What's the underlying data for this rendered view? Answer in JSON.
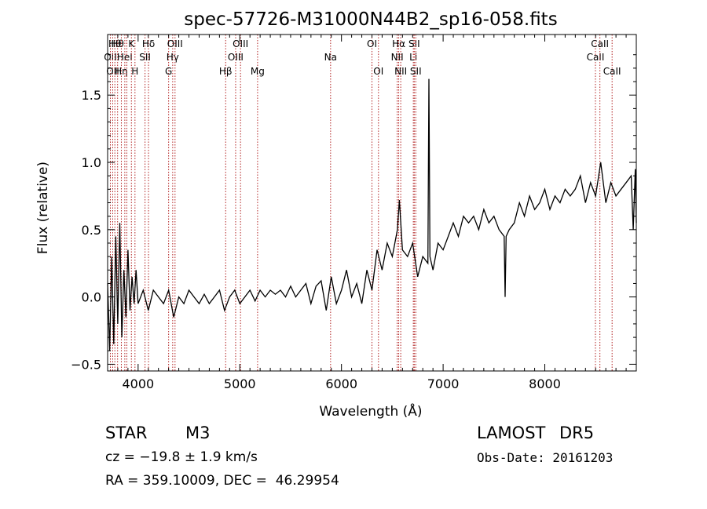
{
  "chart_data": {
    "type": "line",
    "title": "spec-57726-M31000N44B2_sp16-058.fits",
    "xlabel": "Wavelength (Å)",
    "ylabel": "Flux (relative)",
    "xlim": [
      3700,
      8900
    ],
    "ylim": [
      -0.55,
      1.95
    ],
    "x_ticks": [
      4000,
      5000,
      6000,
      7000,
      8000
    ],
    "x_tick_labels": [
      "4000",
      "5000",
      "6000",
      "7000",
      "8000"
    ],
    "y_ticks": [
      -0.5,
      0.0,
      0.5,
      1.0,
      1.5
    ],
    "y_tick_labels": [
      "−0.5",
      "0.0",
      "0.5",
      "1.0",
      "1.5"
    ],
    "grid": false,
    "line_color": "#000000",
    "marker_line_color": "#b22222",
    "series": [
      {
        "x": [
          3700,
          3720,
          3740,
          3760,
          3780,
          3800,
          3820,
          3840,
          3860,
          3880,
          3900,
          3920,
          3940,
          3960,
          3980,
          4000,
          4050,
          4100,
          4150,
          4200,
          4250,
          4300,
          4350,
          4400,
          4450,
          4500,
          4550,
          4600,
          4650,
          4700,
          4750,
          4800,
          4850,
          4900,
          4950,
          5000,
          5050,
          5100,
          5150,
          5200,
          5250,
          5300,
          5350,
          5400,
          5450,
          5500,
          5550,
          5600,
          5650,
          5700,
          5750,
          5800,
          5850,
          5900,
          5950,
          6000,
          6050,
          6100,
          6150,
          6200,
          6250,
          6300,
          6350,
          6400,
          6450,
          6500,
          6550,
          6570,
          6600,
          6650,
          6700,
          6750,
          6800,
          6850,
          6860,
          6870,
          6900,
          6950,
          7000,
          7050,
          7100,
          7150,
          7200,
          7250,
          7300,
          7350,
          7400,
          7450,
          7500,
          7550,
          7600,
          7610,
          7620,
          7650,
          7700,
          7750,
          7800,
          7850,
          7900,
          7950,
          8000,
          8050,
          8100,
          8150,
          8200,
          8250,
          8300,
          8350,
          8400,
          8450,
          8500,
          8550,
          8600,
          8650,
          8700,
          8750,
          8800,
          8850,
          8870,
          8890,
          8900
        ],
        "y": [
          0.1,
          -0.4,
          0.3,
          -0.35,
          0.45,
          -0.2,
          0.55,
          -0.3,
          0.2,
          -0.15,
          0.35,
          -0.1,
          0.15,
          -0.05,
          0.2,
          -0.05,
          0.05,
          -0.1,
          0.05,
          0.0,
          -0.05,
          0.05,
          -0.15,
          0.0,
          -0.05,
          0.05,
          0.0,
          -0.05,
          0.02,
          -0.05,
          0.0,
          0.05,
          -0.1,
          0.0,
          0.05,
          -0.05,
          0.0,
          0.05,
          -0.03,
          0.05,
          0.0,
          0.05,
          0.02,
          0.05,
          0.0,
          0.08,
          0.0,
          0.05,
          0.1,
          -0.05,
          0.08,
          0.12,
          -0.1,
          0.15,
          -0.05,
          0.05,
          0.2,
          0.0,
          0.1,
          -0.05,
          0.2,
          0.05,
          0.35,
          0.2,
          0.4,
          0.3,
          0.5,
          0.72,
          0.35,
          0.3,
          0.4,
          0.15,
          0.3,
          0.25,
          1.62,
          0.3,
          0.2,
          0.4,
          0.35,
          0.45,
          0.55,
          0.45,
          0.6,
          0.55,
          0.6,
          0.5,
          0.65,
          0.55,
          0.6,
          0.5,
          0.45,
          0.0,
          0.45,
          0.5,
          0.55,
          0.7,
          0.6,
          0.75,
          0.65,
          0.7,
          0.8,
          0.65,
          0.75,
          0.7,
          0.8,
          0.75,
          0.8,
          0.9,
          0.7,
          0.85,
          0.75,
          1.0,
          0.7,
          0.85,
          0.75,
          0.8,
          0.85,
          0.9,
          0.5,
          0.95,
          0.55
        ]
      }
    ],
    "line_markers": [
      {
        "wavelength": 3727,
        "label": "OII",
        "row": 2
      },
      {
        "wavelength": 3750,
        "label": "OII",
        "row": 3
      },
      {
        "wavelength": 3771,
        "label": "Hθ",
        "row": 1
      },
      {
        "wavelength": 3798,
        "label": "Hθ",
        "row": 1
      },
      {
        "wavelength": 3835,
        "label": "Hη",
        "row": 3
      },
      {
        "wavelength": 3869,
        "label": "HeI",
        "row": 2
      },
      {
        "wavelength": 3889,
        "label": "",
        "row": 0
      },
      {
        "wavelength": 3934,
        "label": "K",
        "row": 1
      },
      {
        "wavelength": 3969,
        "label": "H",
        "row": 3
      },
      {
        "wavelength": 4068,
        "label": "SII",
        "row": 2
      },
      {
        "wavelength": 4102,
        "label": "Hδ",
        "row": 1
      },
      {
        "wavelength": 4300,
        "label": "G",
        "row": 3
      },
      {
        "wavelength": 4340,
        "label": "Hγ",
        "row": 2
      },
      {
        "wavelength": 4363,
        "label": "OIII",
        "row": 1
      },
      {
        "wavelength": 4861,
        "label": "Hβ",
        "row": 3
      },
      {
        "wavelength": 4959,
        "label": "OIII",
        "row": 2
      },
      {
        "wavelength": 5007,
        "label": "OIII",
        "row": 1
      },
      {
        "wavelength": 5175,
        "label": "Mg",
        "row": 3
      },
      {
        "wavelength": 5893,
        "label": "Na",
        "row": 2
      },
      {
        "wavelength": 6300,
        "label": "OI",
        "row": 1
      },
      {
        "wavelength": 6364,
        "label": "OI",
        "row": 3
      },
      {
        "wavelength": 6548,
        "label": "NII",
        "row": 2
      },
      {
        "wavelength": 6563,
        "label": "Hα",
        "row": 1
      },
      {
        "wavelength": 6583,
        "label": "NII",
        "row": 3
      },
      {
        "wavelength": 6707,
        "label": "Li",
        "row": 2
      },
      {
        "wavelength": 6716,
        "label": "SII",
        "row": 1
      },
      {
        "wavelength": 6731,
        "label": "SII",
        "row": 3
      },
      {
        "wavelength": 8498,
        "label": "CaII",
        "row": 2
      },
      {
        "wavelength": 8542,
        "label": "CaII",
        "row": 1
      },
      {
        "wavelength": 8662,
        "label": "CaII",
        "row": 3
      }
    ]
  },
  "info": {
    "class": "STAR",
    "subclass": "M3",
    "survey": "LAMOST",
    "release": "DR5",
    "cz": "cz = −19.8 ± 1.9 km/s",
    "obs_date": "Obs-Date: 20161203",
    "coords": "RA = 359.10009, DEC =  46.29954"
  }
}
